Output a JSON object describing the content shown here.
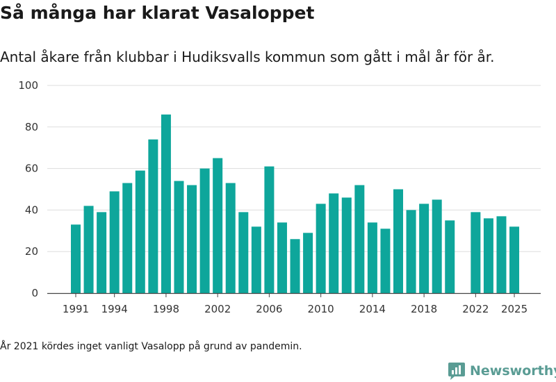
{
  "chart_data": {
    "type": "bar",
    "title": "Så många har klarat Vasaloppet",
    "subtitle": "Antal åkare från klubbar i Hudiksvalls kommun som gått i mål år för år.",
    "x": [
      1991,
      1992,
      1993,
      1994,
      1995,
      1996,
      1997,
      1998,
      1999,
      2000,
      2001,
      2002,
      2003,
      2004,
      2005,
      2006,
      2007,
      2008,
      2009,
      2010,
      2011,
      2012,
      2013,
      2014,
      2015,
      2016,
      2017,
      2018,
      2019,
      2020,
      2021,
      2022,
      2023,
      2024,
      2025
    ],
    "values": [
      33,
      42,
      39,
      49,
      53,
      59,
      74,
      86,
      54,
      52,
      60,
      65,
      53,
      39,
      32,
      61,
      34,
      26,
      29,
      43,
      48,
      46,
      52,
      34,
      31,
      50,
      40,
      43,
      45,
      35,
      null,
      39,
      36,
      37,
      32
    ],
    "xticks": [
      "1991",
      "1994",
      "1998",
      "2002",
      "2006",
      "2010",
      "2014",
      "2018",
      "2022",
      "2025"
    ],
    "yticks": [
      "0",
      "20",
      "40",
      "60",
      "80",
      "100"
    ],
    "ylim": [
      0,
      100
    ],
    "bar_color": "#0ea69b",
    "grid": true,
    "note": "År 2021 kördes inget vanligt Vasalopp på grund av pandemin."
  },
  "brand": {
    "name": "Newsworthy",
    "color": "#5a9c94"
  }
}
